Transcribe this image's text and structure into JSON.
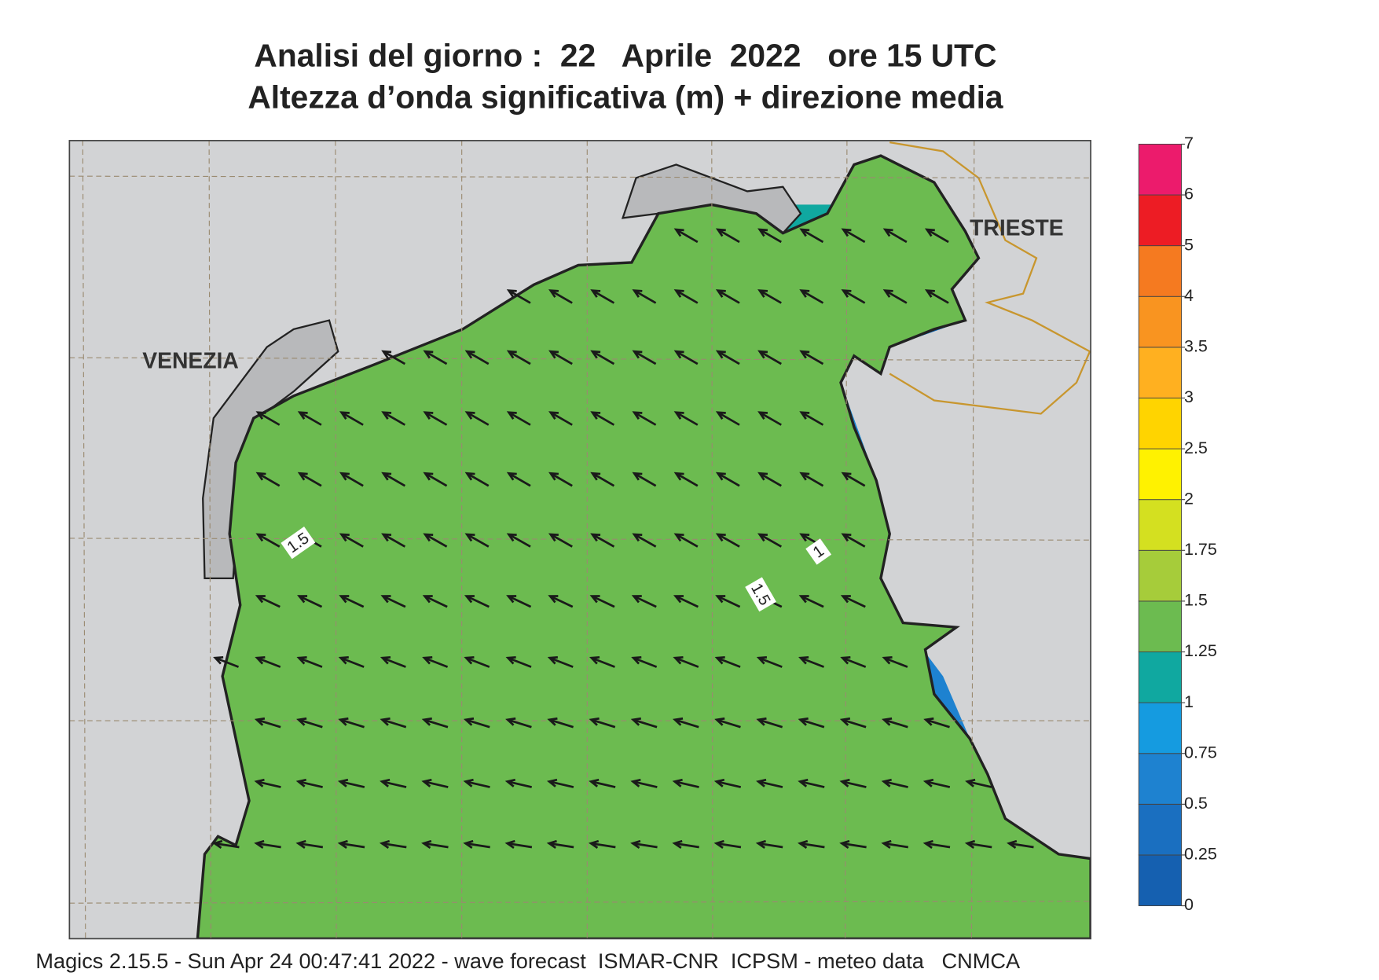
{
  "header": {
    "title": "Analisi del giorno :  22   Aprile  2022   ore 15 UTC",
    "subtitle": "Altezza d’onda significativa (m) + direzione media"
  },
  "map": {
    "places": [
      "VENEZIA",
      "TRIESTE"
    ],
    "contour_labels": [
      "1.5",
      "1",
      "1.5"
    ]
  },
  "colorbar": {
    "ticks": [
      0,
      0.25,
      0.5,
      0.75,
      1,
      1.25,
      1.5,
      1.75,
      2,
      2.5,
      3,
      3.5,
      4,
      5,
      6,
      7
    ],
    "colors": [
      "#1560b0",
      "#1a6fc0",
      "#1e82d0",
      "#159be0",
      "#10a8a0",
      "#6cbb50",
      "#a6cc3a",
      "#d4e020",
      "#fff200",
      "#ffd400",
      "#ffb020",
      "#f99420",
      "#f57a20",
      "#ed1c24",
      "#ec1b6c"
    ]
  },
  "footer": "Magics 2.15.5 - Sun Apr 24 00:47:41 2022 - wave forecast  ISMAR-CNR  ICPSM - meteo data   CNMCA"
}
